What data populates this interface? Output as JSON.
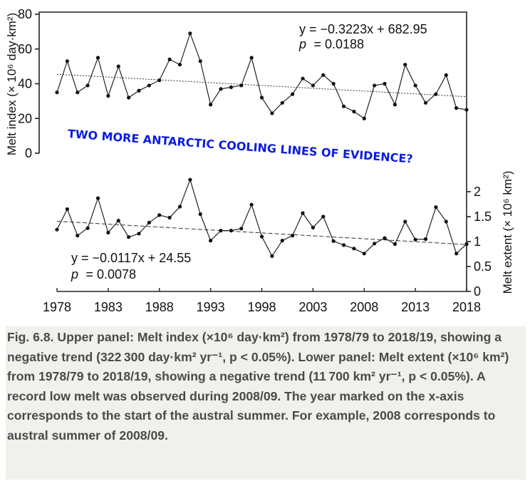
{
  "chart_data": [
    {
      "type": "line",
      "title": "",
      "panel": "upper",
      "xlabel": "",
      "ylabel": "Melt index (× 10⁶ day·km²)",
      "ylim": [
        0,
        80
      ],
      "yticks": [
        "0",
        "20",
        "40",
        "60",
        "80"
      ],
      "x": [
        1978,
        1979,
        1980,
        1981,
        1982,
        1983,
        1984,
        1985,
        1986,
        1987,
        1988,
        1989,
        1990,
        1991,
        1992,
        1993,
        1994,
        1995,
        1996,
        1997,
        1998,
        1999,
        2000,
        2001,
        2002,
        2003,
        2004,
        2005,
        2006,
        2007,
        2008,
        2009,
        2010,
        2011,
        2012,
        2013,
        2014,
        2015,
        2016,
        2017,
        2018
      ],
      "series": [
        {
          "name": "Melt index",
          "values": [
            35,
            53,
            35,
            39,
            55,
            33,
            50,
            32,
            36,
            39,
            42,
            54,
            51,
            69,
            53,
            28,
            37,
            38,
            39,
            55,
            32,
            23,
            29,
            34,
            43,
            39,
            45,
            40,
            27,
            24,
            20,
            39,
            40,
            28,
            51,
            39,
            29,
            34,
            45,
            26,
            25
          ]
        }
      ],
      "trend": {
        "slope": -0.3223,
        "intercept": 682.95
      },
      "equation": "y = −0.3223x + 682.95",
      "p_label": "p",
      "p_value": "= 0.0188"
    },
    {
      "type": "line",
      "title": "",
      "panel": "lower",
      "xlabel": "",
      "ylabel": "Melt extent (× 10⁶ km²)",
      "ylim": [
        0,
        2.5
      ],
      "yticks": [
        "0",
        "0.5",
        "1",
        "1.5",
        "2"
      ],
      "x": [
        1978,
        1979,
        1980,
        1981,
        1982,
        1983,
        1984,
        1985,
        1986,
        1987,
        1988,
        1989,
        1990,
        1991,
        1992,
        1993,
        1994,
        1995,
        1996,
        1997,
        1998,
        1999,
        2000,
        2001,
        2002,
        2003,
        2004,
        2005,
        2006,
        2007,
        2008,
        2009,
        2010,
        2011,
        2012,
        2013,
        2014,
        2015,
        2016,
        2017,
        2018
      ],
      "series": [
        {
          "name": "Melt extent",
          "values": [
            1.24,
            1.65,
            1.12,
            1.27,
            1.87,
            1.18,
            1.42,
            1.09,
            1.16,
            1.38,
            1.53,
            1.48,
            1.7,
            2.24,
            1.55,
            1.02,
            1.22,
            1.22,
            1.26,
            1.74,
            1.1,
            0.71,
            1.02,
            1.12,
            1.57,
            1.28,
            1.5,
            1.01,
            0.93,
            0.86,
            0.76,
            0.96,
            1.07,
            0.95,
            1.4,
            1.04,
            1.05,
            1.69,
            1.4,
            0.76,
            0.95
          ]
        }
      ],
      "trend": {
        "slope": -0.0117,
        "intercept": 24.55
      },
      "equation": "y = −0.0117x + 24.55",
      "p_label": "p",
      "p_value": "= 0.0078"
    }
  ],
  "x_ticks": [
    "1978",
    "1983",
    "1988",
    "1993",
    "1998",
    "2003",
    "2008",
    "2013",
    "2018"
  ],
  "overlay_text": "TWO MORE ANTARCTIC COOLING LINES OF EVIDENCE?",
  "caption": {
    "label": "Fig. 6.8.",
    "text": " Upper panel: Melt index (×10⁶ day·km²) from 1978/79 to 2018/19, showing a negative trend (322 300 day·km² yr⁻¹, p < 0.05%). Lower panel: Melt extent (×10⁶ km²) from 1978/79 to 2018/19, showing a negative trend (11 700 km² yr⁻¹, p < 0.05%). A record low melt was observed during 2008/09. The year marked on the x-axis corresponds to the start of the austral summer. For example, 2008 corresponds to austral summer of 2008/09."
  }
}
